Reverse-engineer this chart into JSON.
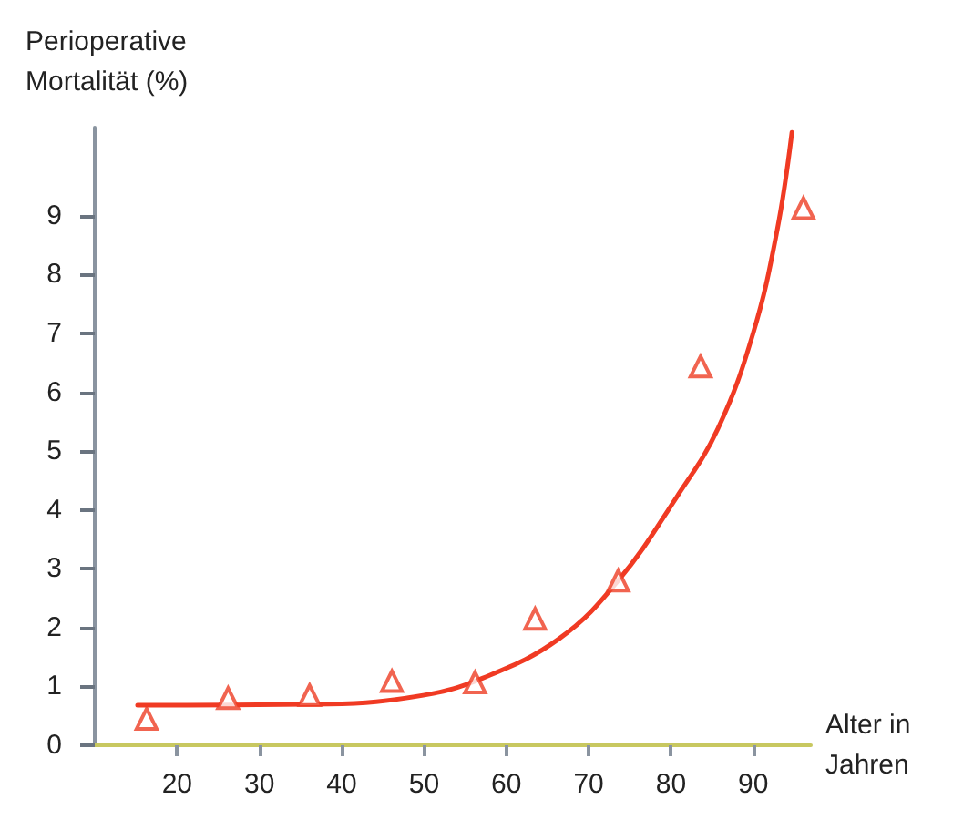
{
  "chart_data": {
    "type": "scatter",
    "xlabel": "Alter in\nJahren",
    "ylabel": "Perioperative\nMortalität (%)",
    "xlim": [
      10,
      97
    ],
    "xticks": [
      20,
      30,
      40,
      50,
      60,
      70,
      80,
      90
    ],
    "ylim": [
      0,
      10.5
    ],
    "yticks": [
      0,
      1,
      2,
      3,
      4,
      5,
      6,
      7,
      8,
      9
    ],
    "grid": false,
    "series": [
      {
        "marker": "triangle",
        "color": "#ee3d24",
        "x": [
          16.3,
          26.2,
          36.1,
          46.1,
          56.2,
          63.5,
          73.6,
          83.6,
          96.1
        ],
        "values": [
          0.45,
          0.8,
          0.85,
          1.09,
          1.07,
          2.15,
          2.8,
          6.44,
          9.13
        ]
      },
      {
        "type": "line",
        "marker": "none",
        "color": "#f03a23",
        "x": [
          15.2,
          38.4,
          49.9,
          57.1,
          66.4,
          73.6,
          80.7,
          85.7,
          90,
          92.9,
          94.7
        ],
        "values": [
          0.68,
          0.7,
          0.85,
          1.14,
          1.81,
          2.8,
          4.22,
          5.38,
          7.01,
          8.75,
          10.42
        ]
      }
    ]
  }
}
